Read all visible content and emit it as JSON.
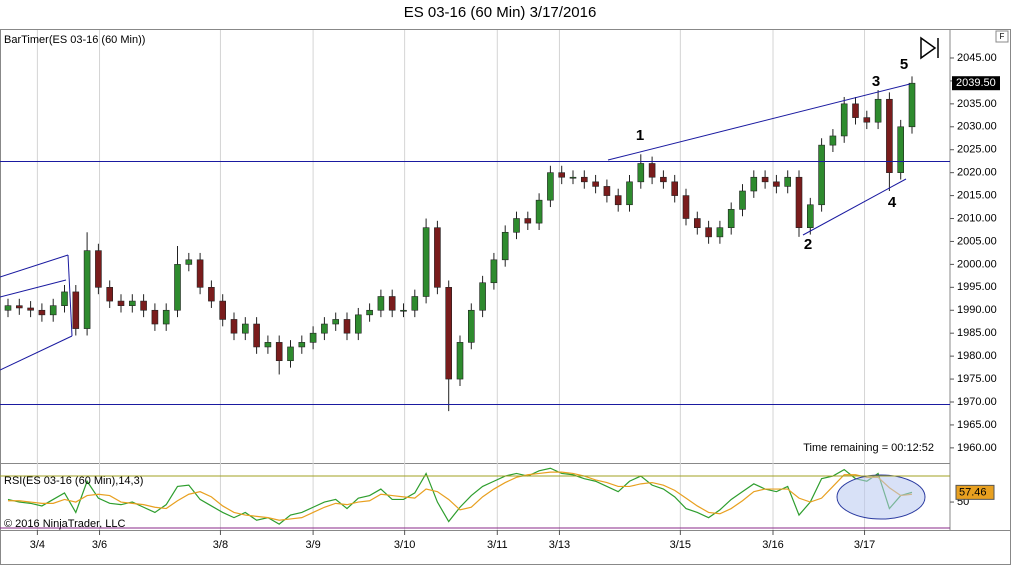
{
  "chart_data": [
    {
      "type": "candlestick",
      "title": "ES 03-16 (60 Min)  3/17/2016",
      "annotations": {
        "bar_timer": "BarTimer(ES 03-16 (60 Min))",
        "time_remaining": "Time remaining = 00:12:52"
      },
      "wave_labels": [
        "1",
        "2",
        "3",
        "4",
        "5"
      ],
      "up_color": "#2e8b2e",
      "down_color": "#7a1c1c",
      "open": [
        1990,
        1991,
        1990.5,
        1990,
        1989,
        1991,
        1994,
        1986,
        2003,
        1995,
        1992,
        1991,
        1992,
        1990,
        1987,
        1990,
        2000,
        2001,
        1995,
        1992,
        1988,
        1985,
        1987,
        1982,
        1983,
        1979,
        1982,
        1983,
        1985,
        1987,
        1988,
        1985,
        1989,
        1990,
        1993,
        1990,
        1990,
        1993,
        2008,
        1995,
        1975,
        1983,
        1990,
        1996,
        2001,
        2007,
        2010,
        2009,
        2014,
        2020,
        2019,
        2019,
        2018,
        2017,
        2015,
        2013,
        2018,
        2022,
        2019,
        2018,
        2015,
        2010,
        2008,
        2006,
        2008,
        2012,
        2016,
        2019,
        2018,
        2017,
        2019,
        2008,
        2013,
        2026,
        2028,
        2035,
        2032,
        2031,
        2036,
        2020,
        2030
      ],
      "high": [
        1992.5,
        1992.5,
        1992,
        1991.5,
        1992.5,
        1995.5,
        1995.5,
        2007,
        2004.5,
        1996.5,
        1993.5,
        1993.5,
        1993.5,
        1991.5,
        1991.5,
        2004,
        2002.5,
        2002.5,
        1996.5,
        1993.5,
        1989.5,
        1988.5,
        1988.5,
        1984.5,
        1984.5,
        1983.5,
        1984.5,
        1986.5,
        1988.5,
        1989.5,
        1989.5,
        1990.5,
        1991.5,
        1994.5,
        1994.5,
        1991.5,
        1994.5,
        2010,
        2009.5,
        1996.5,
        1984.5,
        1991.5,
        1997.5,
        2002.5,
        2008.5,
        2011.5,
        2011.5,
        2015.5,
        2021.5,
        2021.5,
        2020.5,
        2020.5,
        2019.5,
        2018.5,
        2016.5,
        2019.5,
        2024,
        2023.5,
        2020.5,
        2019.5,
        2016.5,
        2011.5,
        2009.5,
        2009.5,
        2013.5,
        2017.5,
        2020.5,
        2020.5,
        2019.5,
        2020.5,
        2020.5,
        2014.5,
        2027.5,
        2029.5,
        2036.5,
        2036.5,
        2033.5,
        2038,
        2037.5,
        2031.5,
        2041
      ],
      "low": [
        1988.5,
        1989,
        1988.5,
        1987.5,
        1987.5,
        1989.5,
        1984.5,
        1984.5,
        1993.5,
        1990.5,
        1989.5,
        1989.5,
        1988.5,
        1985.5,
        1985.5,
        1988.5,
        1998.5,
        1993.5,
        1990.5,
        1986.5,
        1983.5,
        1983.5,
        1980.5,
        1980.5,
        1976,
        1977.5,
        1980.5,
        1981.5,
        1983.5,
        1985.5,
        1983.5,
        1983.5,
        1987.5,
        1988.5,
        1988.5,
        1988.5,
        1988.5,
        1991.5,
        1993.5,
        1968,
        1973.5,
        1981.5,
        1988.5,
        1994.5,
        1999.5,
        2005.5,
        2007.5,
        2007.5,
        2012.5,
        2017.5,
        2017.5,
        2016.5,
        2015.5,
        2013.5,
        2011.5,
        2011.5,
        2016.5,
        2017.5,
        2016.5,
        2013.5,
        2008.5,
        2006.5,
        2004.5,
        2004.5,
        2006.5,
        2010.5,
        2014.5,
        2016.5,
        2015.5,
        2015.5,
        2006,
        2006.5,
        2011.5,
        2024.5,
        2026.5,
        2030.5,
        2029.5,
        2029.5,
        2016,
        2018.5,
        2028.5
      ],
      "close": [
        1991,
        1990.5,
        1990,
        1989,
        1991,
        1994,
        1986,
        2003,
        1995,
        1992,
        1991,
        1992,
        1990,
        1987,
        1990,
        2000,
        2001,
        1995,
        1992,
        1988,
        1985,
        1987,
        1982,
        1983,
        1979,
        1982,
        1983,
        1985,
        1987,
        1988,
        1985,
        1989,
        1990,
        1993,
        1990,
        1990,
        1993,
        2008,
        1995,
        1975,
        1983,
        1990,
        1996,
        2001,
        2007,
        2010,
        2009,
        2014,
        2020,
        2019,
        2019,
        2018,
        2017,
        2015,
        2013,
        2018,
        2022,
        2019,
        2018,
        2015,
        2010,
        2008,
        2006,
        2008,
        2012,
        2016,
        2019,
        2018,
        2017,
        2019,
        2008,
        2013,
        2026,
        2028,
        2035,
        2032,
        2031,
        2036,
        2020,
        2030,
        2039.5
      ],
      "last_price": {
        "value": 2039.5,
        "label": "2039.50"
      },
      "ylim": [
        1956.7,
        2051.1
      ],
      "yticks": [
        {
          "value": 1960,
          "label": "1960.00"
        },
        {
          "value": 1965,
          "label": "1965.00"
        },
        {
          "value": 1970,
          "label": "1970.00"
        },
        {
          "value": 1975,
          "label": "1975.00"
        },
        {
          "value": 1980,
          "label": "1980.00"
        },
        {
          "value": 1985,
          "label": "1985.00"
        },
        {
          "value": 1990,
          "label": "1990.00"
        },
        {
          "value": 1995,
          "label": "1995.00"
        },
        {
          "value": 2000,
          "label": "2000.00"
        },
        {
          "value": 2005,
          "label": "2005.00"
        },
        {
          "value": 2010,
          "label": "2010.00"
        },
        {
          "value": 2015,
          "label": "2015.00"
        },
        {
          "value": 2020,
          "label": "2020.00"
        },
        {
          "value": 2025,
          "label": "2025.00"
        },
        {
          "value": 2030,
          "label": "2030.00"
        },
        {
          "value": 2035,
          "label": "2035.00"
        },
        {
          "value": 2040,
          "label": "2040.00"
        },
        {
          "value": 2045,
          "label": "2045.00"
        }
      ],
      "xticks": [
        {
          "value": 2.6,
          "label": "3/4"
        },
        {
          "value": 8.1,
          "label": "3/6"
        },
        {
          "value": 18.8,
          "label": "3/8"
        },
        {
          "value": 27,
          "label": "3/9"
        },
        {
          "value": 35.1,
          "label": "3/10"
        },
        {
          "value": 43.3,
          "label": "3/11"
        },
        {
          "value": 48.8,
          "label": "3/13"
        },
        {
          "value": 59.5,
          "label": "3/15"
        },
        {
          "value": 67.7,
          "label": "3/16"
        },
        {
          "value": 75.8,
          "label": "3/17"
        }
      ],
      "grid": "x"
    },
    {
      "type": "line",
      "title": "RSI(ES 03-16 (60 Min),14,3)",
      "annotations": {
        "copyright": "© 2016 NinjaTrader, LLC"
      },
      "series": [
        {
          "color": "#2e9e2e",
          "values": [
            52,
            50,
            49,
            47,
            52,
            57,
            42,
            66,
            53,
            49,
            48,
            50,
            46,
            42,
            48,
            62,
            63,
            52,
            47,
            42,
            38,
            42,
            36,
            38,
            33,
            40,
            42,
            46,
            50,
            52,
            45,
            53,
            55,
            60,
            52,
            52,
            57,
            72,
            50,
            35,
            46,
            55,
            62,
            66,
            70,
            72,
            70,
            74,
            76,
            72,
            71,
            68,
            66,
            62,
            58,
            66,
            70,
            63,
            60,
            54,
            45,
            42,
            38,
            44,
            52,
            58,
            64,
            60,
            58,
            62,
            40,
            50,
            68,
            70,
            75,
            68,
            66,
            72,
            45,
            55,
            57.46
          ]
        },
        {
          "color": "#e8a020",
          "values": [
            51,
            51,
            50,
            49,
            49,
            52,
            50,
            55,
            56,
            55,
            50,
            49,
            48,
            46,
            45,
            51,
            56,
            58,
            54,
            47,
            42,
            40,
            39,
            38,
            36,
            37,
            38,
            42,
            46,
            49,
            48,
            50,
            51,
            56,
            55,
            54,
            53,
            60,
            58,
            52,
            44,
            46,
            54,
            60,
            65,
            69,
            71,
            72,
            73,
            73,
            72,
            70,
            67,
            65,
            62,
            62,
            64,
            65,
            63,
            59,
            53,
            47,
            42,
            41,
            45,
            51,
            58,
            60,
            60,
            60,
            53,
            50,
            53,
            62,
            71,
            71,
            69,
            69,
            61,
            55,
            56
          ]
        }
      ],
      "ylim": [
        28.5,
        78.5
      ],
      "yticks": [
        50
      ],
      "levels": [
        {
          "value": 70,
          "color": "#a0a020"
        },
        {
          "value": 30,
          "color": "#8a2a8a"
        }
      ]
    }
  ]
}
